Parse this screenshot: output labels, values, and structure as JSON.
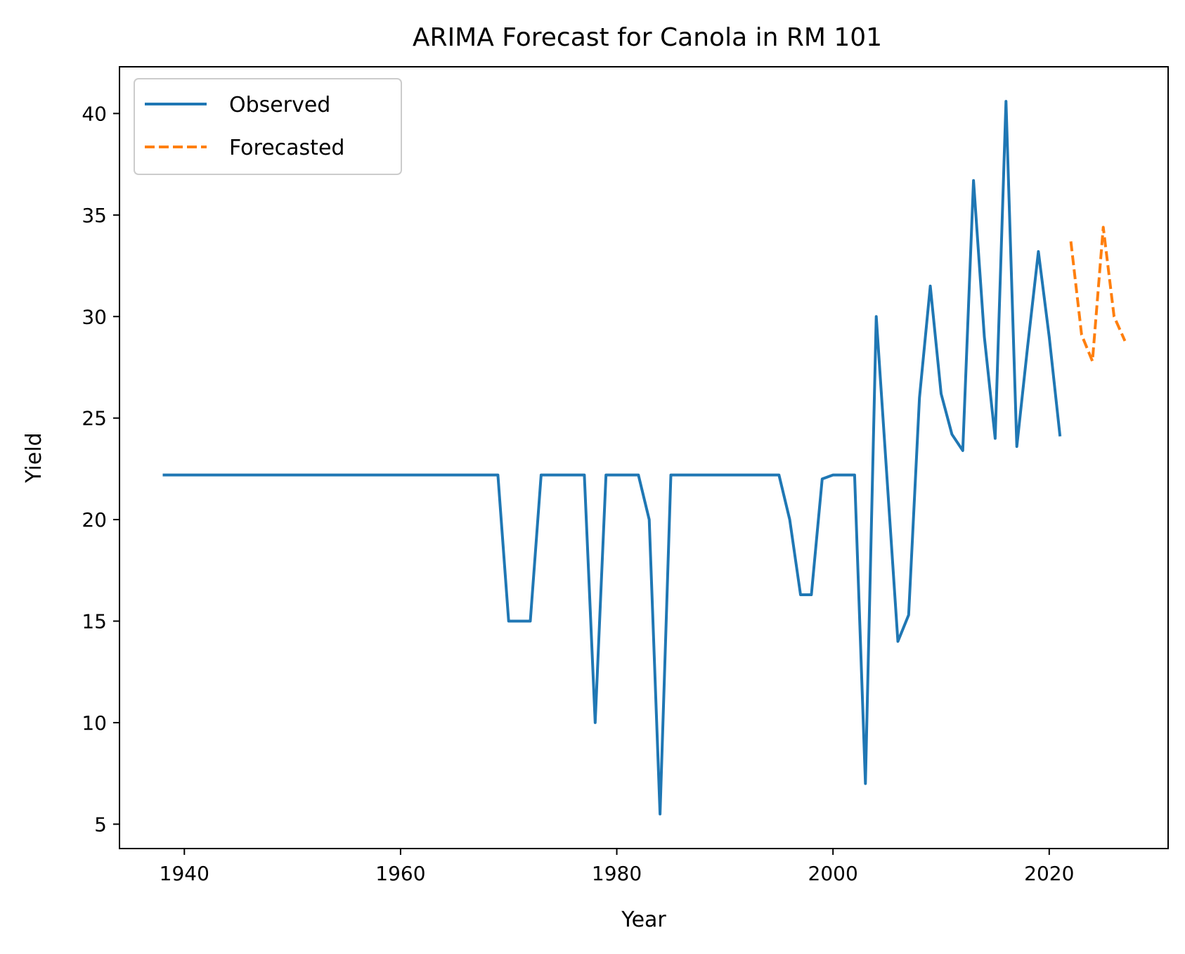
{
  "chart_data": {
    "type": "line",
    "title": "ARIMA Forecast for Canola in RM 101",
    "xlabel": "Year",
    "ylabel": "Yield",
    "xlim": [
      1934,
      2031
    ],
    "ylim": [
      3.8,
      42.3
    ],
    "xticks": [
      1940,
      1960,
      1980,
      2000,
      2020
    ],
    "yticks": [
      5,
      10,
      15,
      20,
      25,
      30,
      35,
      40
    ],
    "grid": false,
    "legend_position": "upper-left",
    "series": [
      {
        "name": "Observed",
        "color": "#1f77b4",
        "style": "solid",
        "x": [
          1938,
          1969,
          1970,
          1972,
          1973,
          1977,
          1978,
          1979,
          1982,
          1983,
          1984,
          1985,
          1995,
          1996,
          1997,
          1998,
          1999,
          2000,
          2002,
          2003,
          2004,
          2005,
          2006,
          2007,
          2008,
          2009,
          2010,
          2011,
          2012,
          2013,
          2014,
          2015,
          2016,
          2017,
          2018,
          2019,
          2020,
          2021
        ],
        "y": [
          22.2,
          22.2,
          15.0,
          15.0,
          22.2,
          22.2,
          10.0,
          22.2,
          22.2,
          20.0,
          5.5,
          22.2,
          22.2,
          20.0,
          16.3,
          16.3,
          22.0,
          22.2,
          22.2,
          7.0,
          30.0,
          22.0,
          14.0,
          15.3,
          26.0,
          31.5,
          26.2,
          24.2,
          23.4,
          36.7,
          29.0,
          24.0,
          40.6,
          23.6,
          28.5,
          33.2,
          29.0,
          24.1
        ]
      },
      {
        "name": "Forecasted",
        "color": "#ff7f0e",
        "style": "dashed",
        "x": [
          2022,
          2023,
          2024,
          2025,
          2026,
          2027
        ],
        "y": [
          33.7,
          29.1,
          27.8,
          34.4,
          30.0,
          28.8
        ]
      }
    ]
  }
}
